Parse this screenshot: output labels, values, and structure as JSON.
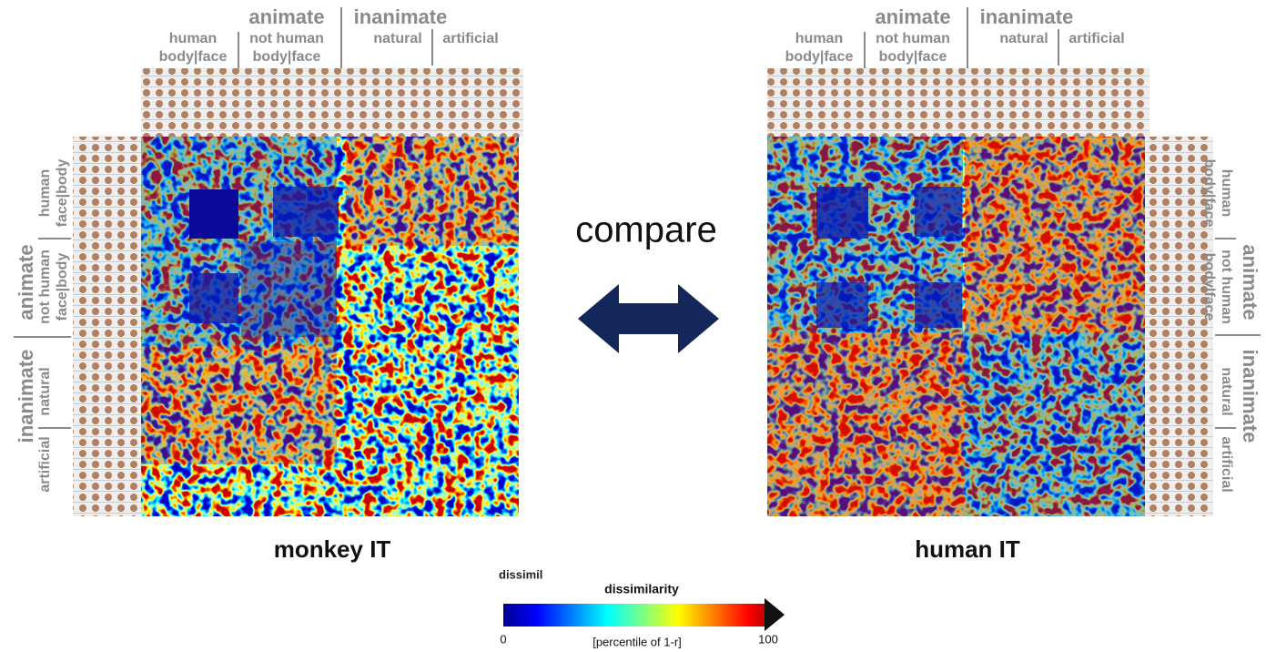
{
  "left_panel": {
    "title": "monkey IT",
    "top_labels": {
      "animate": "animate",
      "inanimate": "inanimate",
      "human": "human",
      "human_parts": "body|face",
      "not_human": "not human",
      "not_human_parts": "body|face",
      "natural": "natural",
      "artificial": "artificial"
    },
    "side_labels": {
      "animate": "animate",
      "inanimate": "inanimate",
      "human": "human",
      "human_parts": "face|body",
      "not_human": "not human",
      "not_human_parts": "face|body",
      "natural": "natural",
      "artificial": "artificial"
    }
  },
  "right_panel": {
    "title": "human IT",
    "top_labels": {
      "animate": "animate",
      "inanimate": "inanimate",
      "human": "human",
      "human_parts": "body|face",
      "not_human": "not human",
      "not_human_parts": "body|face",
      "natural": "natural",
      "artificial": "artificial"
    },
    "side_labels": {
      "animate": "animate",
      "inanimate": "inanimate",
      "human": "human",
      "human_parts": "body|face",
      "not_human": "not human",
      "not_human_parts": "body|face",
      "natural": "natural",
      "artificial": "artificial"
    }
  },
  "compare": "compare",
  "colorbar": {
    "cropped_text": "dissimil",
    "title": "dissimilarity",
    "min": 0,
    "max": 100,
    "unit": "[percentile of 1-r]"
  }
}
